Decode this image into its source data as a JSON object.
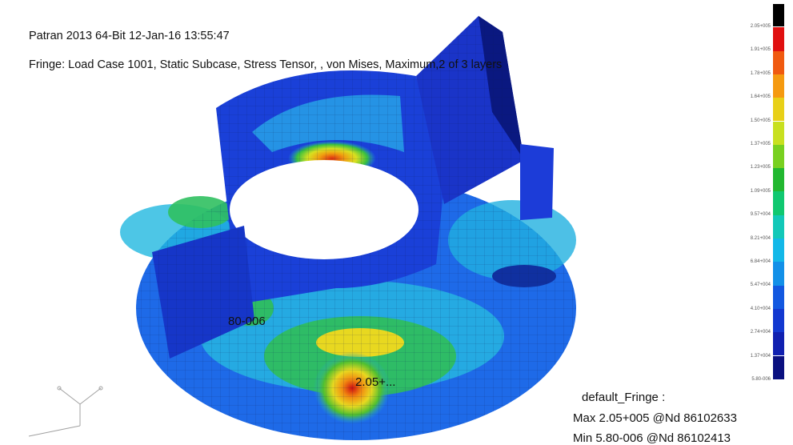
{
  "header": {
    "line1": "Patran 2013 64-Bit 12-Jan-16 13:55:47",
    "line2": "Fringe: Load Case 1001, Static Subcase, Stress Tensor, , von Mises, Maximum,2 of 3 layers"
  },
  "spectrum": {
    "labels": [
      "2.05+005",
      "1.91+005",
      "1.78+005",
      "1.64+005",
      "1.50+005",
      "1.37+005",
      "1.23+005",
      "1.09+005",
      "9.57+004",
      "8.21+004",
      "6.84+004",
      "5.47+004",
      "4.10+004",
      "2.74+004",
      "1.37+004",
      "5.80-006"
    ],
    "colors": [
      "#000000",
      "#e01010",
      "#f05a10",
      "#f59a10",
      "#e8d018",
      "#c8e020",
      "#78d020",
      "#22b830",
      "#10c870",
      "#12c8b8",
      "#12b8e8",
      "#1290e8",
      "#1258e0",
      "#1238d0",
      "#1020b0",
      "#0a1080"
    ]
  },
  "model": {
    "min_tag": "80-006",
    "max_tag": "2.05+..."
  },
  "results": {
    "title": "default_Fringe :",
    "max": "Max 2.05+005 @Nd 86102633",
    "min": "Min 5.80-006 @Nd 86102413"
  },
  "axis_triad": {
    "icon": "xyz-axis-triad-icon"
  }
}
